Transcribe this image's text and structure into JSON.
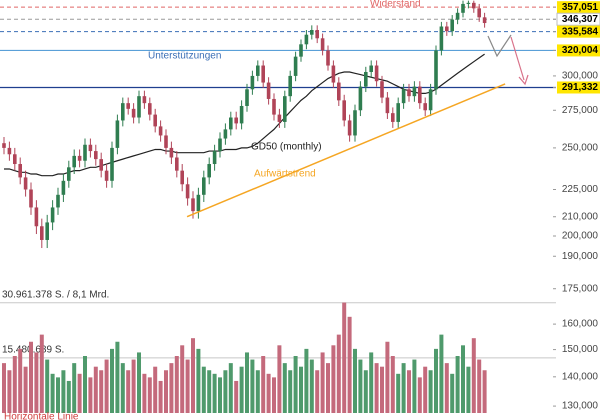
{
  "chart_data": {
    "type": "candlestick",
    "scale": "log",
    "ylim": [
      125500,
      363600
    ],
    "yticks": [
      {
        "value": 357051,
        "label": "357,051"
      },
      {
        "value": 346307,
        "label": "346,307"
      },
      {
        "value": 335584,
        "label": "335,584"
      },
      {
        "value": 320004,
        "label": "320,004"
      },
      {
        "value": 300000,
        "label": "300,000"
      },
      {
        "value": 291332,
        "label": "291,332"
      },
      {
        "value": 275000,
        "label": "275,000"
      },
      {
        "value": 250000,
        "label": "250,000"
      },
      {
        "value": 225000,
        "label": "225,000"
      },
      {
        "value": 210000,
        "label": "210,000"
      },
      {
        "value": 200000,
        "label": "200,000"
      },
      {
        "value": 190000,
        "label": "190,000"
      },
      {
        "value": 175000,
        "label": "175,000"
      },
      {
        "value": 160000,
        "label": "160,000"
      },
      {
        "value": 150000,
        "label": "150,000"
      },
      {
        "value": 140000,
        "label": "140,000"
      },
      {
        "value": 130000,
        "label": "130,000"
      }
    ],
    "up_color": "#2f7d50",
    "down_color": "#b04458",
    "open": [
      253000,
      250000,
      246000,
      240000,
      232000,
      225000,
      215000,
      205000,
      198000,
      207000,
      215000,
      222000,
      230000,
      238000,
      245000,
      242000,
      252000,
      248000,
      243000,
      236000,
      230000,
      250000,
      268000,
      280000,
      276000,
      270000,
      285000,
      280000,
      272000,
      264000,
      258000,
      250000,
      244000,
      236000,
      228000,
      220000,
      213000,
      222000,
      232000,
      240000,
      248000,
      256000,
      262000,
      270000,
      266000,
      278000,
      290000,
      300000,
      308000,
      295000,
      283000,
      272000,
      267000,
      285000,
      300000,
      315000,
      325000,
      333000,
      337000,
      330000,
      320000,
      308000,
      295000,
      282000,
      268000,
      258000,
      275000,
      292000,
      303000,
      308000,
      296000,
      284000,
      273000,
      267000,
      280000,
      290000,
      285000,
      292000,
      280000,
      275000,
      290000,
      320000,
      340000,
      336000,
      346000,
      352000,
      360000,
      361000,
      356000,
      348000
    ],
    "high": [
      257000,
      254000,
      250000,
      244000,
      236000,
      229000,
      219000,
      209000,
      211000,
      219000,
      226000,
      234000,
      242000,
      249000,
      249000,
      256000,
      256000,
      252000,
      247000,
      240000,
      254000,
      272000,
      284000,
      284000,
      280000,
      289000,
      289000,
      284000,
      276000,
      268000,
      262000,
      254000,
      248000,
      240000,
      232000,
      224000,
      226000,
      236000,
      244000,
      252000,
      260000,
      266000,
      274000,
      274000,
      282000,
      294000,
      304000,
      312000,
      312000,
      299000,
      287000,
      276000,
      289000,
      304000,
      319000,
      329000,
      337000,
      341000,
      341000,
      334000,
      324000,
      312000,
      299000,
      286000,
      272000,
      279000,
      296000,
      307000,
      312000,
      312000,
      300000,
      288000,
      277000,
      284000,
      294000,
      294000,
      296000,
      296000,
      284000,
      294000,
      324000,
      344000,
      344000,
      350000,
      356000,
      363000,
      363000,
      363000,
      360000,
      352000
    ],
    "low": [
      246000,
      242000,
      236000,
      228000,
      221000,
      211000,
      201000,
      194000,
      194000,
      203000,
      211000,
      218000,
      226000,
      234000,
      238000,
      238000,
      244000,
      239000,
      232000,
      226000,
      226000,
      246000,
      264000,
      272000,
      266000,
      266000,
      276000,
      268000,
      260000,
      254000,
      246000,
      240000,
      232000,
      224000,
      216000,
      209000,
      209000,
      218000,
      228000,
      236000,
      244000,
      252000,
      258000,
      262000,
      262000,
      274000,
      286000,
      296000,
      291000,
      279000,
      268000,
      263000,
      263000,
      281000,
      296000,
      311000,
      321000,
      329000,
      326000,
      316000,
      304000,
      291000,
      278000,
      264000,
      254000,
      254000,
      271000,
      288000,
      299000,
      292000,
      280000,
      269000,
      263000,
      263000,
      276000,
      281000,
      281000,
      276000,
      271000,
      271000,
      286000,
      316000,
      332000,
      332000,
      342000,
      348000,
      356000,
      352000,
      344000,
      339000
    ],
    "close": [
      250000,
      246000,
      240000,
      232000,
      225000,
      215000,
      205000,
      198000,
      207000,
      215000,
      222000,
      230000,
      238000,
      245000,
      242000,
      252000,
      248000,
      243000,
      236000,
      230000,
      250000,
      268000,
      280000,
      276000,
      270000,
      285000,
      280000,
      272000,
      264000,
      258000,
      250000,
      244000,
      236000,
      228000,
      220000,
      213000,
      222000,
      232000,
      240000,
      248000,
      256000,
      262000,
      270000,
      266000,
      278000,
      290000,
      300000,
      308000,
      295000,
      283000,
      272000,
      267000,
      285000,
      300000,
      315000,
      325000,
      333000,
      337000,
      330000,
      320000,
      308000,
      295000,
      282000,
      268000,
      258000,
      275000,
      292000,
      303000,
      308000,
      296000,
      284000,
      273000,
      267000,
      280000,
      290000,
      285000,
      292000,
      280000,
      275000,
      290000,
      320000,
      340000,
      336000,
      346000,
      352000,
      360000,
      361000,
      356000,
      348000,
      343000
    ],
    "volume": {
      "ylim": [
        0,
        32000000
      ],
      "yticks": [
        {
          "value": 30961378,
          "label": "30.961.378 S. / 8,1 Mrd."
        },
        {
          "value": 15480689,
          "label": "15.480.689 S."
        }
      ],
      "up_color": "#4f9a6c",
      "down_color": "#c46a7c",
      "values": [
        14000000,
        12000000,
        16000000,
        18000000,
        13000000,
        20000000,
        17000000,
        22000000,
        15000000,
        11000000,
        10000000,
        12000000,
        9000000,
        14000000,
        11000000,
        16000000,
        10000000,
        13000000,
        12000000,
        15000000,
        18000000,
        20000000,
        14000000,
        12000000,
        15000000,
        17000000,
        11000000,
        10000000,
        13000000,
        9000000,
        12000000,
        14000000,
        16000000,
        19000000,
        15000000,
        21000000,
        18000000,
        13000000,
        12000000,
        11000000,
        10000000,
        12000000,
        14000000,
        9000000,
        13000000,
        17000000,
        15000000,
        12000000,
        16000000,
        11000000,
        10000000,
        19000000,
        14000000,
        12000000,
        16000000,
        13000000,
        18000000,
        15000000,
        12000000,
        17000000,
        14000000,
        19000000,
        22000000,
        31000000,
        27000000,
        18000000,
        15000000,
        12000000,
        17000000,
        14000000,
        13000000,
        20000000,
        16000000,
        11000000,
        14000000,
        12000000,
        15000000,
        10000000,
        13000000,
        12000000,
        18000000,
        22000000,
        14000000,
        11000000,
        16000000,
        19000000,
        13000000,
        21000000,
        15000000,
        12000000
      ]
    },
    "moving_average": {
      "label": "GD50 (monthly)",
      "color": "#222222",
      "values": [
        237000,
        237000,
        236000,
        235000,
        235000,
        234000,
        234000,
        233000,
        233000,
        233000,
        234000,
        234000,
        235000,
        236000,
        236000,
        237000,
        238000,
        238000,
        239000,
        240000,
        241000,
        242000,
        243000,
        244000,
        245000,
        246000,
        247000,
        248000,
        249000,
        249000,
        248000,
        248000,
        247000,
        247000,
        247000,
        247000,
        247000,
        247000,
        248000,
        248000,
        248000,
        249000,
        249000,
        249000,
        250000,
        250000,
        251000,
        253000,
        256000,
        259000,
        262000,
        266000,
        270000,
        274000,
        278000,
        282000,
        285000,
        289000,
        292000,
        295000,
        298000,
        300000,
        302000,
        303000,
        303000,
        302000,
        301000,
        300000,
        299000,
        298000,
        297000,
        296000,
        294000,
        292000,
        290000,
        289000,
        288000,
        287000,
        287000,
        288000,
        290000,
        293000,
        296000,
        299000,
        302000,
        305000,
        308000,
        311000,
        314000,
        317000
      ]
    },
    "trendline": {
      "label": "Aufwärtstrend",
      "color": "#f5a623",
      "x": [
        33.9,
        92.8
      ],
      "y": [
        210000,
        294000
      ]
    },
    "levels": [
      {
        "value": 357051,
        "label": "Widerstand",
        "color": "#e06666",
        "style": "dashed",
        "tag_color": "#ffe600"
      },
      {
        "value": 346307,
        "color": "#9a9a9a",
        "style": "dashed",
        "tag_color": "#ffffff"
      },
      {
        "value": 335584,
        "color": "#3b6fb6",
        "style": "dashed",
        "tag_color": "#ffe600"
      },
      {
        "value": 320004,
        "label": "Unterstützungen",
        "color": "#5aa0d8",
        "style": "solid",
        "tag_color": "#ffe600"
      },
      {
        "value": 291332,
        "color": "#1f3f8f",
        "style": "solid",
        "tag_color": "#ffe600"
      }
    ],
    "footer_note": "Horizontale Linie"
  }
}
